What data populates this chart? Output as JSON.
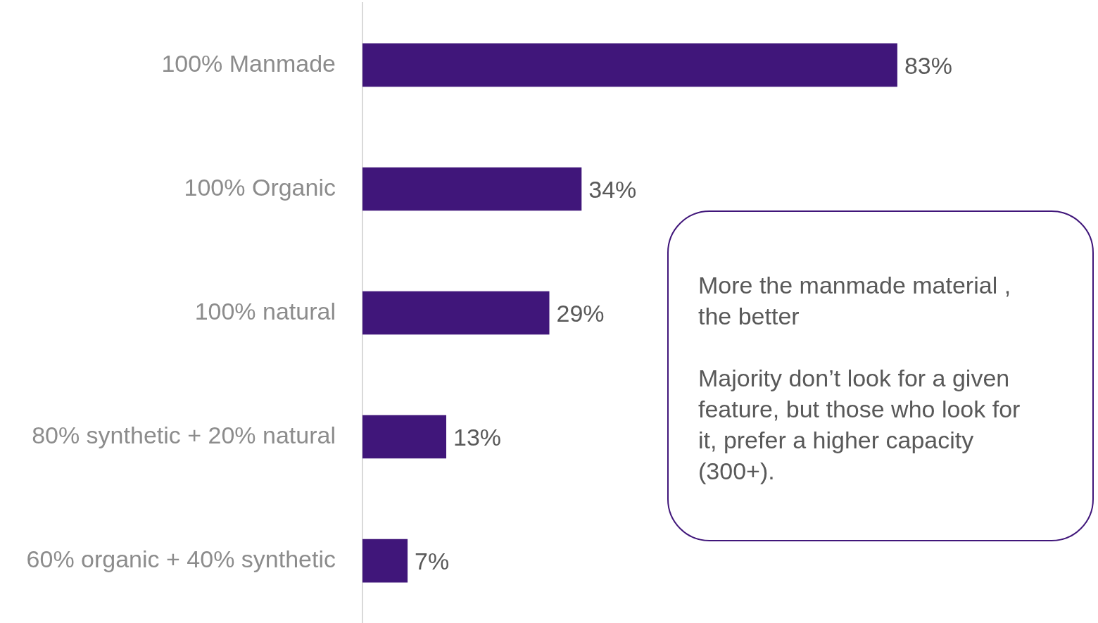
{
  "chart_data": {
    "type": "bar",
    "orientation": "horizontal",
    "categories": [
      "100% Manmade",
      "100% Organic",
      "100% natural",
      "80% synthetic + 20% natural",
      "60% organic + 40% synthetic"
    ],
    "values": [
      83,
      34,
      29,
      13,
      7
    ],
    "value_labels": [
      "83%",
      "34%",
      "29%",
      "13%",
      "7%"
    ],
    "color": "#40167a",
    "annotations": [
      "More the manmade material , the better",
      "Majority don’t look for a given feature, but those who look for it, prefer a higher capacity (300+)."
    ]
  }
}
